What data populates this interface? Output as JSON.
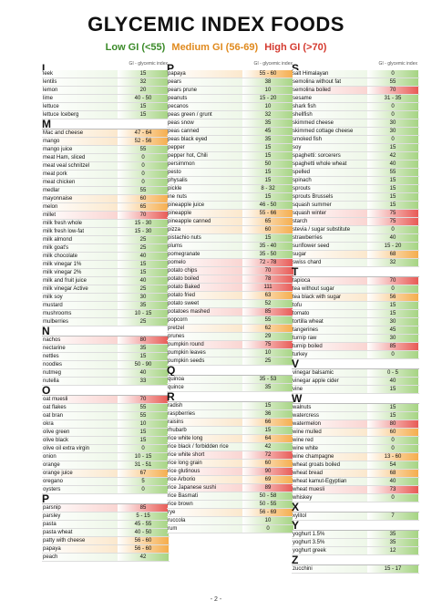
{
  "title": "GLYCEMIC INDEX FOODS",
  "legend": {
    "low": "Low GI (<55)",
    "medium": "Medium GI (56-69)",
    "high": "High GI (>70)"
  },
  "colors": {
    "low": "#3a8a28",
    "medium": "#e08a1e",
    "high": "#d43a2f"
  },
  "gi_label": "GI - glycemic index",
  "footer": "- 2 -",
  "columns": [
    {
      "letter": "L",
      "sections": [
        {
          "letter": "L",
          "items": [
            [
              "leek",
              "15",
              "low"
            ],
            [
              "lentils",
              "32",
              "low"
            ],
            [
              "lemon",
              "20",
              "low"
            ],
            [
              "lime",
              "40 - 50",
              "low"
            ],
            [
              "lettuce",
              "15",
              "low"
            ],
            [
              "lettuce Iceberg",
              "15",
              "low"
            ]
          ]
        },
        {
          "letter": "M",
          "items": [
            [
              "Mac and cheese",
              "47 - 64",
              "med"
            ],
            [
              "mango",
              "52 - 56",
              "med"
            ],
            [
              "mango juice",
              "55",
              "low"
            ],
            [
              "meat Ham, sliced",
              "0",
              "low"
            ],
            [
              "meat veal schnitzel",
              "0",
              "low"
            ],
            [
              "meat pork",
              "0",
              "low"
            ],
            [
              "meat chicken",
              "0",
              "low"
            ],
            [
              "medlar",
              "55",
              "low"
            ],
            [
              "mayonnaise",
              "60",
              "med"
            ],
            [
              "melon",
              "65",
              "med"
            ],
            [
              "millet",
              "70",
              "high"
            ],
            [
              "milk fresh whole",
              "15 - 30",
              "low"
            ],
            [
              "milk fresh low-fat",
              "15 - 30",
              "low"
            ],
            [
              "milk almond",
              "25",
              "low"
            ],
            [
              "milk goat's",
              "25",
              "low"
            ],
            [
              "milk chocolate",
              "40",
              "low"
            ],
            [
              "milk vinegar 1%",
              "15",
              "low"
            ],
            [
              "milk vinegar 2%",
              "15",
              "low"
            ],
            [
              "milk and fruit juice",
              "40",
              "low"
            ],
            [
              "milk vinegar Active",
              "25",
              "low"
            ],
            [
              "milk soy",
              "30",
              "low"
            ],
            [
              "mustard",
              "35",
              "low"
            ],
            [
              "mushrooms",
              "10 - 15",
              "low"
            ],
            [
              "mulberries",
              "25",
              "low"
            ]
          ]
        },
        {
          "letter": "N",
          "items": [
            [
              "nachos",
              "80",
              "high"
            ],
            [
              "nectarine",
              "35",
              "low"
            ],
            [
              "nettles",
              "15",
              "low"
            ],
            [
              "noodles",
              "50 - 90",
              "low"
            ],
            [
              "nutmeg",
              "40",
              "low"
            ],
            [
              "nutella",
              "33",
              "low"
            ]
          ]
        },
        {
          "letter": "O",
          "items": [
            [
              "oat muesli",
              "70",
              "high"
            ],
            [
              "oat flakes",
              "55",
              "low"
            ],
            [
              "oat bran",
              "55",
              "low"
            ],
            [
              "okra",
              "10",
              "low"
            ],
            [
              "olive green",
              "15",
              "low"
            ],
            [
              "olive black",
              "15",
              "low"
            ],
            [
              "olive oil extra virgin",
              "0",
              "low"
            ],
            [
              "onion",
              "10 - 15",
              "low"
            ],
            [
              "orange",
              "31 - 51",
              "low"
            ],
            [
              "orange juice",
              "67",
              "med"
            ],
            [
              "oregano",
              "5",
              "low"
            ],
            [
              "oysters",
              "0",
              "low"
            ]
          ]
        },
        {
          "letter": "P",
          "items": [
            [
              "parsnip",
              "85",
              "high"
            ],
            [
              "parsley",
              "5 - 15",
              "low"
            ],
            [
              "pasta",
              "45 - 55",
              "low"
            ],
            [
              "pasta wheat",
              "40 - 50",
              "low"
            ],
            [
              "patty with cheese",
              "56 - 60",
              "med"
            ],
            [
              "papaya",
              "56 - 60",
              "med"
            ],
            [
              "peach",
              "42",
              "low"
            ]
          ]
        }
      ]
    },
    {
      "letter": "P",
      "sections": [
        {
          "letter": "P",
          "items": [
            [
              "papaya",
              "55 - 60",
              "med"
            ],
            [
              "pears",
              "38",
              "low"
            ],
            [
              "pears prune",
              "10",
              "low"
            ],
            [
              "peanuts",
              "15 - 20",
              "low"
            ],
            [
              "pecanos",
              "10",
              "low"
            ],
            [
              "peas green / grunt",
              "32",
              "low"
            ],
            [
              "peas snow",
              "35",
              "low"
            ],
            [
              "peas canned",
              "45",
              "low"
            ],
            [
              "peas black eyed",
              "35",
              "low"
            ],
            [
              "pepper",
              "15",
              "low"
            ],
            [
              "pepper hot, Chili",
              "15",
              "low"
            ],
            [
              "persimmon",
              "50",
              "low"
            ],
            [
              "pesto",
              "15",
              "low"
            ],
            [
              "physalis",
              "15",
              "low"
            ],
            [
              "pickle",
              "8 - 32",
              "low"
            ],
            [
              "ine nuts",
              "15",
              "low"
            ],
            [
              "pineapple juice",
              "46 - 50",
              "low"
            ],
            [
              "pineapple",
              "55 - 66",
              "med"
            ],
            [
              "pineapple canned",
              "65",
              "med"
            ],
            [
              "pizza",
              "60",
              "med"
            ],
            [
              "pistachio nuts",
              "15",
              "low"
            ],
            [
              "plums",
              "35 - 40",
              "low"
            ],
            [
              "pomegranate",
              "35 - 50",
              "low"
            ],
            [
              "pomelo",
              "72 - 78",
              "high"
            ],
            [
              "potato chips",
              "70",
              "high"
            ],
            [
              "potato boiled",
              "78",
              "high"
            ],
            [
              "potato Baked",
              "111",
              "high"
            ],
            [
              "potato fried",
              "63",
              "med"
            ],
            [
              "potato sweet",
              "52",
              "low"
            ],
            [
              "potatoes mashed",
              "85",
              "high"
            ],
            [
              "popcorn",
              "55",
              "low"
            ],
            [
              "pretzel",
              "62",
              "med"
            ],
            [
              "prunes",
              "29",
              "low"
            ],
            [
              "pumpkin round",
              "75",
              "high"
            ],
            [
              "pumpkin leaves",
              "10",
              "low"
            ],
            [
              "pumpkin seeds",
              "25",
              "low"
            ]
          ]
        },
        {
          "letter": "Q",
          "items": [
            [
              "quinoa",
              "35 - 53",
              "low"
            ],
            [
              "quince",
              "35",
              "low"
            ]
          ]
        },
        {
          "letter": "R",
          "items": [
            [
              "radish",
              "15",
              "low"
            ],
            [
              "raspberries",
              "36",
              "low"
            ],
            [
              "raisins",
              "66",
              "med"
            ],
            [
              "rhubarb",
              "15",
              "low"
            ],
            [
              "rice white long",
              "64",
              "med"
            ],
            [
              "rice black / forbidden rice",
              "42",
              "low"
            ],
            [
              "rice white short",
              "72",
              "high"
            ],
            [
              "rice long grain",
              "60",
              "med"
            ],
            [
              "rice glutinous",
              "90",
              "high"
            ],
            [
              "rice Arborio",
              "69",
              "med"
            ],
            [
              "rice Japanese sushi",
              "89",
              "high"
            ],
            [
              "rice Basmati",
              "50 - 58",
              "low"
            ],
            [
              "rice brown",
              "50 - 55",
              "low"
            ],
            [
              "rye",
              "56 - 69",
              "med"
            ],
            [
              "ruccola",
              "10",
              "low"
            ],
            [
              "rum",
              "0",
              "low"
            ]
          ]
        }
      ]
    },
    {
      "letter": "S",
      "sections": [
        {
          "letter": "S",
          "items": [
            [
              "salt Himalayan",
              "0",
              "low"
            ],
            [
              "semolina without fat",
              "55",
              "low"
            ],
            [
              "semolina boiled",
              "70",
              "high"
            ],
            [
              "sesame",
              "31 - 35",
              "low"
            ],
            [
              "shark fish",
              "0",
              "low"
            ],
            [
              "shellfish",
              "0",
              "low"
            ],
            [
              "skimmed cheese",
              "30",
              "low"
            ],
            [
              "skimmed cottage cheese",
              "30",
              "low"
            ],
            [
              "smoked fish",
              "0",
              "low"
            ],
            [
              "soy",
              "15",
              "low"
            ],
            [
              "spaghetti: sorcerers",
              "42",
              "low"
            ],
            [
              "spaghetti whole wheat",
              "40",
              "low"
            ],
            [
              "spelled",
              "55",
              "low"
            ],
            [
              "spinach",
              "15",
              "low"
            ],
            [
              "sprouts",
              "15",
              "low"
            ],
            [
              "sprouts Brussels",
              "15",
              "low"
            ],
            [
              "squash summer",
              "15",
              "low"
            ],
            [
              "squash winter",
              "75",
              "high"
            ],
            [
              "starch",
              "75",
              "high"
            ],
            [
              "stevia / sugar substitute",
              "0",
              "low"
            ],
            [
              "strawberries",
              "40",
              "low"
            ],
            [
              "sunflower seed",
              "15 - 20",
              "low"
            ],
            [
              "sugar",
              "68",
              "med"
            ],
            [
              "swiss chard",
              "32",
              "low"
            ]
          ]
        },
        {
          "letter": "T",
          "items": [
            [
              "tapioca",
              "70",
              "high"
            ],
            [
              "tea without sugar",
              "0",
              "low"
            ],
            [
              "tea black with sugar",
              "56",
              "med"
            ],
            [
              "tofu",
              "15",
              "low"
            ],
            [
              "tomato",
              "15",
              "low"
            ],
            [
              "tortilla wheat",
              "30",
              "low"
            ],
            [
              "tangerines",
              "45",
              "low"
            ],
            [
              "turnip raw",
              "30",
              "low"
            ],
            [
              "turnip boiled",
              "85",
              "high"
            ],
            [
              "turkey",
              "0",
              "low"
            ]
          ]
        },
        {
          "letter": "V",
          "items": [
            [
              "vinegar balsamic",
              "0 - 5",
              "low"
            ],
            [
              "vinegar apple cider",
              "40",
              "low"
            ],
            [
              "vine",
              "15",
              "low"
            ]
          ]
        },
        {
          "letter": "W",
          "items": [
            [
              "walnuts",
              "15",
              "low"
            ],
            [
              "watercress",
              "15",
              "low"
            ],
            [
              "watermelon",
              "80",
              "high"
            ],
            [
              "wine mulled",
              "60",
              "med"
            ],
            [
              "wine red",
              "0",
              "low"
            ],
            [
              "wine white",
              "0",
              "low"
            ],
            [
              "wine champagne",
              "13 - 60",
              "med"
            ],
            [
              "wheat groats boiled",
              "54",
              "low"
            ],
            [
              "wheat bread",
              "68",
              "med"
            ],
            [
              "wheat kamut-Egyptian",
              "40",
              "low"
            ],
            [
              "wheat muesli",
              "73",
              "high"
            ],
            [
              "whiskey",
              "0",
              "low"
            ]
          ]
        },
        {
          "letter": "X",
          "items": [
            [
              "xylitol",
              "7",
              "low"
            ]
          ]
        },
        {
          "letter": "Y",
          "items": [
            [
              "yoghurt 1.5%",
              "35",
              "low"
            ],
            [
              "yoghurt 3.5%",
              "35",
              "low"
            ],
            [
              "yoghurt greek",
              "12",
              "low"
            ]
          ]
        },
        {
          "letter": "Z",
          "items": [
            [
              "zucchini",
              "15 - 17",
              "low"
            ]
          ]
        }
      ]
    }
  ]
}
